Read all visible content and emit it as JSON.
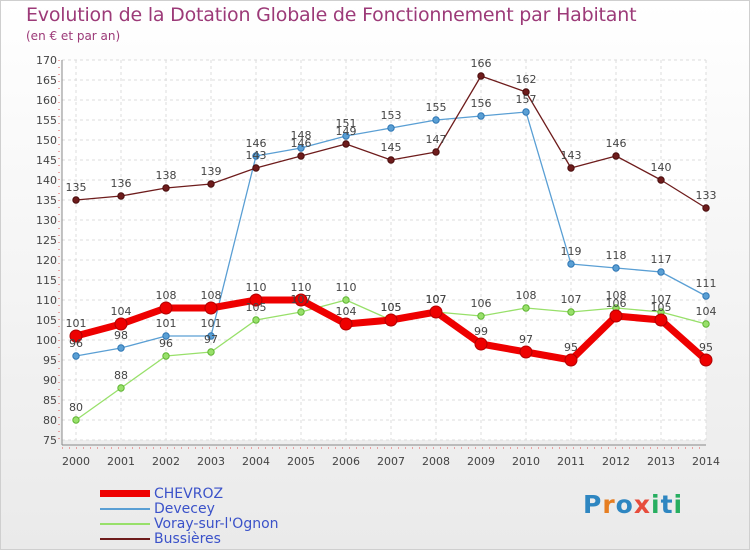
{
  "title": "Evolution de la Dotation Globale de Fonctionnement par Habitant",
  "subtitle": "(en € et par an)",
  "logo": {
    "text": "Proxiti",
    "letters": [
      {
        "ch": "P",
        "color": "#2e86c1"
      },
      {
        "ch": "r",
        "color": "#e67e22"
      },
      {
        "ch": "o",
        "color": "#2e86c1"
      },
      {
        "ch": "x",
        "color": "#e74c3c"
      },
      {
        "ch": "i",
        "color": "#27ae60"
      },
      {
        "ch": "t",
        "color": "#2e86c1"
      },
      {
        "ch": "i",
        "color": "#27ae60"
      }
    ]
  },
  "chart_data": {
    "type": "line",
    "x": [
      "2000",
      "2001",
      "2002",
      "2003",
      "2004",
      "2005",
      "2006",
      "2007",
      "2008",
      "2009",
      "2010",
      "2011",
      "2012",
      "2013",
      "2014"
    ],
    "ylim": [
      75,
      170
    ],
    "yticks": [
      75,
      80,
      85,
      90,
      95,
      100,
      105,
      110,
      115,
      120,
      125,
      130,
      135,
      140,
      145,
      150,
      155,
      160,
      165,
      170
    ],
    "grid": true,
    "legend_position": "bottom-left",
    "series": [
      {
        "name": "CHEVROZ",
        "color": "#ee0000",
        "values": [
          101,
          104,
          108,
          108,
          110,
          110,
          104,
          105,
          107,
          99,
          97,
          95,
          106,
          105,
          95
        ]
      },
      {
        "name": "Devecey",
        "color": "#5a9fd4",
        "values": [
          96,
          98,
          101,
          101,
          146,
          148,
          151,
          153,
          155,
          156,
          157,
          119,
          118,
          117,
          111
        ]
      },
      {
        "name": "Voray-sur-l'Ognon",
        "color": "#98e06a",
        "values": [
          80,
          88,
          96,
          97,
          105,
          107,
          110,
          105,
          107,
          106,
          108,
          107,
          108,
          107,
          104
        ]
      },
      {
        "name": "Bussières",
        "color": "#6e1c1c",
        "values": [
          135,
          136,
          138,
          139,
          143,
          146,
          149,
          145,
          147,
          166,
          162,
          143,
          146,
          140,
          133
        ]
      }
    ]
  }
}
